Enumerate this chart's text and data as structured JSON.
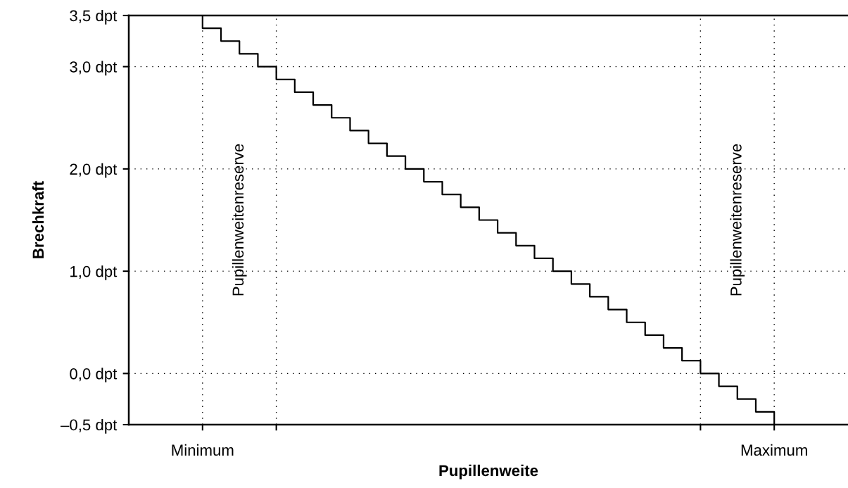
{
  "chart_data": {
    "type": "step",
    "xlabel": "Pupillenweite",
    "ylabel": "Brechkraft",
    "categories": [
      "Minimum",
      null,
      null,
      null,
      null,
      null,
      null,
      null,
      null,
      null,
      null,
      null,
      null,
      null,
      null,
      null,
      null,
      null,
      null,
      null,
      null,
      null,
      null,
      null,
      null,
      null,
      null,
      null,
      null,
      null,
      null,
      "Maximum",
      null
    ],
    "series": [
      {
        "color": "#000000",
        "values": [
          3.5,
          3.375,
          3.25,
          3.125,
          3.0,
          2.875,
          2.75,
          2.625,
          2.5,
          2.375,
          2.25,
          2.125,
          2.0,
          1.875,
          1.75,
          1.625,
          1.5,
          1.375,
          1.25,
          1.125,
          1.0,
          0.875,
          0.75,
          0.625,
          0.5,
          0.375,
          0.25,
          0.125,
          0.0,
          -0.125,
          -0.25,
          -0.375,
          -0.5
        ]
      }
    ],
    "ylim": [
      -0.5,
      3.5
    ],
    "yticks": [
      {
        "value": -0.5,
        "label": "–0,5 dpt"
      },
      {
        "value": 0,
        "label": "0,0 dpt"
      },
      {
        "value": 1,
        "label": "1,0 dpt"
      },
      {
        "value": 2,
        "label": "2,0 dpt"
      },
      {
        "value": 3,
        "label": "3,0 dpt"
      },
      {
        "value": 3.5,
        "label": "3,5 dpt"
      }
    ],
    "grid": true,
    "line_style": "solid",
    "marker": "none",
    "annotations": [
      "Pupillenweitenreserve",
      "Pupillenweitenreserve"
    ]
  }
}
